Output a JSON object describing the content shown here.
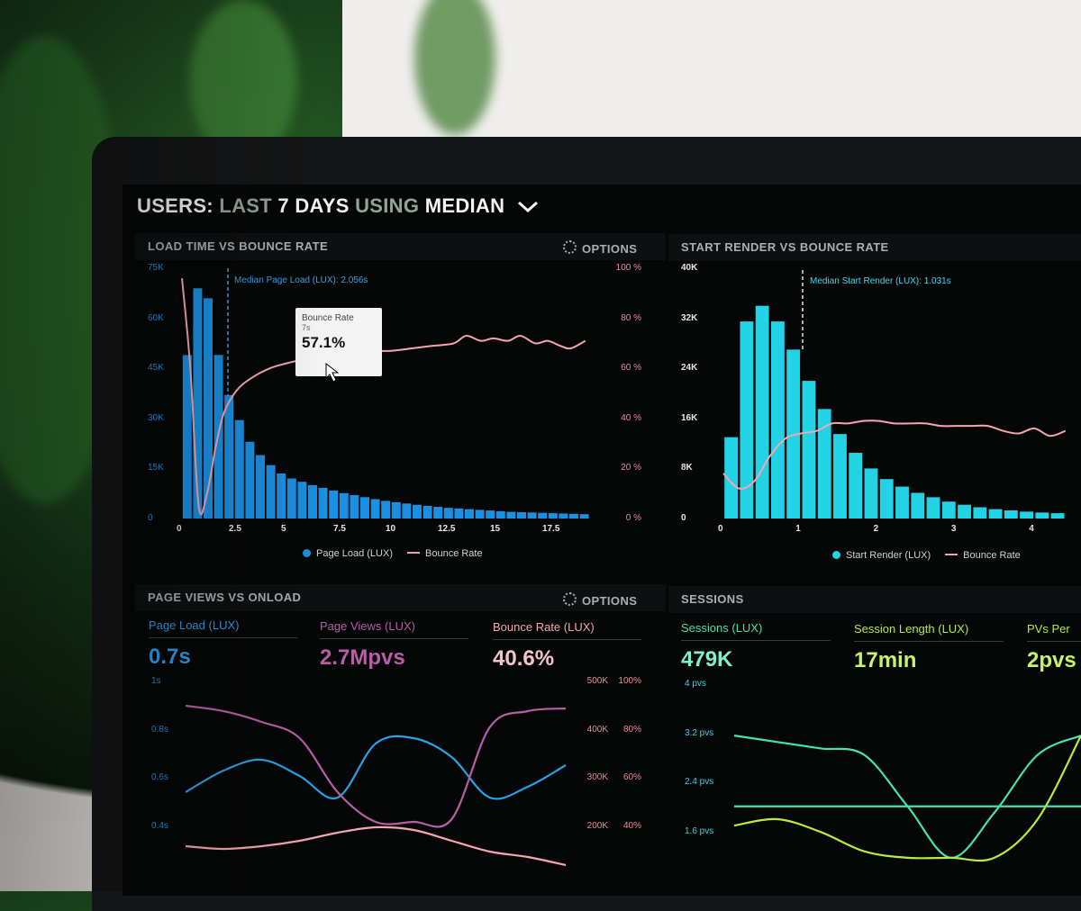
{
  "header": {
    "users": "USERS:",
    "last": "LAST",
    "days": "7 DAYS",
    "using": "USING",
    "median": "MEDIAN"
  },
  "colors": {
    "blue": "#1b8fe0",
    "cyan": "#22d3e6",
    "pink": "#f3a6b1",
    "purple": "#b65fa6",
    "teal": "#47e0b0",
    "lime": "#b9ea3d",
    "bg": "#050606"
  },
  "panels": {
    "load_bounce": {
      "title": "LOAD TIME VS BOUNCE RATE",
      "options": "OPTIONS",
      "median_label": "Median Page Load (LUX): 2.056s",
      "tooltip": {
        "title": "Bounce Rate",
        "sub": "7s",
        "value": "57.1%"
      },
      "legend": {
        "a": "Page Load (LUX)",
        "b": "Bounce Rate"
      }
    },
    "start_render": {
      "title": "START RENDER VS BOUNCE RATE",
      "median_label": "Median Start Render (LUX): 1.031s",
      "legend": {
        "a": "Start Render (LUX)",
        "b": "Bounce Rate"
      }
    },
    "page_views": {
      "title": "PAGE VIEWS VS ONLOAD",
      "options": "OPTIONS",
      "metrics": [
        {
          "label": "Page Load (LUX)",
          "value": "0.7s"
        },
        {
          "label": "Page Views (LUX)",
          "value": "2.7Mpvs"
        },
        {
          "label": "Bounce Rate (LUX)",
          "value": "40.6%"
        }
      ]
    },
    "sessions": {
      "title": "SESSIONS",
      "metrics": [
        {
          "label": "Sessions (LUX)",
          "value": "479K"
        },
        {
          "label": "Session Length (LUX)",
          "value": "17min"
        },
        {
          "label": "PVs Per",
          "value": "2pvs"
        }
      ]
    }
  },
  "chart_data": [
    {
      "type": "bar",
      "title": "LOAD TIME VS BOUNCE RATE",
      "x_ticks": [
        "0",
        "2.5",
        "5",
        "7.5",
        "10",
        "12.5",
        "15",
        "17.5"
      ],
      "y_ticks": [
        "0",
        "15K",
        "30K",
        "45K",
        "60K",
        "75K"
      ],
      "y2_ticks": [
        "0 %",
        "20 %",
        "40 %",
        "60 %",
        "80 %",
        "100 %"
      ],
      "ylim": [
        0,
        75000
      ],
      "y2lim": [
        0,
        100
      ],
      "bar_width": 0.5,
      "series": [
        {
          "name": "Page Load (LUX)",
          "x": [
            0.25,
            0.75,
            1.25,
            1.75,
            2.25,
            2.75,
            3.25,
            3.75,
            4.25,
            4.75,
            5.25,
            5.75,
            6.25,
            6.75,
            7.25,
            7.75,
            8.25,
            8.75,
            9.25,
            9.75,
            10.25,
            10.75,
            11.25,
            11.75,
            12.25,
            12.75,
            13.25,
            13.75,
            14.25,
            14.75,
            15.25,
            15.75,
            16.25,
            16.75,
            17.25,
            17.75,
            18.25,
            18.75,
            19.25
          ],
          "values": [
            49000,
            69000,
            66000,
            49000,
            37000,
            29500,
            23000,
            19000,
            16000,
            13500,
            12000,
            11000,
            10000,
            9200,
            8400,
            7600,
            7000,
            6400,
            5800,
            5300,
            4900,
            4500,
            4100,
            3800,
            3500,
            3200,
            3000,
            2800,
            2600,
            2400,
            2200,
            2000,
            1900,
            1800,
            1700,
            1600,
            1500,
            1400,
            1300
          ]
        },
        {
          "name": "Bounce Rate",
          "axis": "y2",
          "x": [
            0,
            0.4,
            0.8,
            1.2,
            1.6,
            2,
            2.6,
            3.3,
            4.2,
            5,
            6,
            7,
            8,
            9,
            10,
            11,
            12,
            13,
            13.6,
            14.3,
            14.9,
            15.6,
            16.2,
            16.9,
            17.5,
            18.1,
            18.6,
            19.3
          ],
          "values": [
            96,
            60,
            5,
            10,
            28,
            42,
            51,
            56,
            60,
            62,
            64,
            66,
            67,
            67,
            67,
            68,
            69,
            70,
            73,
            71,
            72,
            71,
            73,
            70,
            71,
            69,
            68,
            71
          ]
        }
      ]
    },
    {
      "type": "bar",
      "title": "START RENDER VS BOUNCE RATE",
      "x_ticks": [
        "0",
        "1",
        "2",
        "3",
        "4"
      ],
      "y_ticks": [
        "0",
        "8K",
        "16K",
        "24K",
        "32K",
        "40K"
      ],
      "ylim": [
        0,
        40000
      ],
      "y2lim": [
        0,
        100
      ],
      "bar_width": 0.2,
      "series": [
        {
          "name": "Start Render (LUX)",
          "x": [
            0.1,
            0.3,
            0.5,
            0.7,
            0.9,
            1.1,
            1.3,
            1.5,
            1.7,
            1.9,
            2.1,
            2.3,
            2.5,
            2.7,
            2.9,
            3.1,
            3.3,
            3.5,
            3.7,
            3.9,
            4.1,
            4.3
          ],
          "values": [
            13000,
            31500,
            34000,
            31500,
            27000,
            22000,
            17500,
            13500,
            10500,
            8000,
            6300,
            5100,
            4100,
            3400,
            2700,
            2200,
            1800,
            1500,
            1300,
            1100,
            950,
            850
          ]
        },
        {
          "name": "Bounce Rate",
          "axis": "y2",
          "x": [
            0,
            0.2,
            0.4,
            0.6,
            0.8,
            1,
            1.2,
            1.4,
            1.6,
            1.8,
            2,
            2.2,
            2.4,
            2.6,
            2.8,
            3,
            3.2,
            3.4,
            3.6,
            3.8,
            4,
            4.2,
            4.4
          ],
          "values": [
            18,
            12,
            15,
            25,
            32,
            34,
            35,
            38,
            38,
            39,
            39,
            38,
            38,
            38,
            37,
            37,
            37,
            37,
            35,
            34,
            36,
            33,
            35
          ]
        }
      ]
    },
    {
      "type": "line",
      "title": "PAGE VIEWS VS ONLOAD",
      "y_ticks": [
        "0.4s",
        "0.6s",
        "0.8s",
        "1s"
      ],
      "y2_ticks_a": [
        "200K",
        "300K",
        "400K",
        "500K"
      ],
      "y2_ticks_b": [
        "40%",
        "60%",
        "80%",
        "100%"
      ],
      "ylim": [
        0.4,
        1.0
      ],
      "series": [
        {
          "name": "Page Load (LUX)",
          "x": [
            0,
            1,
            2,
            3,
            4,
            5,
            6,
            7,
            8,
            9,
            10
          ],
          "values": [
            0.6,
            0.68,
            0.72,
            0.66,
            0.58,
            0.78,
            0.8,
            0.73,
            0.58,
            0.62,
            0.7
          ]
        },
        {
          "name": "Page Views (LUX)",
          "x": [
            0,
            1,
            2,
            3,
            4,
            5,
            6,
            7,
            8,
            9,
            10
          ],
          "values": [
            0.92,
            0.9,
            0.86,
            0.8,
            0.6,
            0.49,
            0.49,
            0.5,
            0.84,
            0.9,
            0.91
          ]
        },
        {
          "name": "Bounce Rate (LUX)",
          "x": [
            0,
            1,
            2,
            3,
            4,
            5,
            6,
            7,
            8,
            9,
            10
          ],
          "values": [
            0.4,
            0.39,
            0.4,
            0.42,
            0.45,
            0.47,
            0.46,
            0.42,
            0.38,
            0.36,
            0.33
          ]
        }
      ]
    },
    {
      "type": "line",
      "title": "SESSIONS",
      "y_ticks": [
        "1.6 pvs",
        "2.4 pvs",
        "3.2 pvs",
        "4 pvs"
      ],
      "ylim": [
        1.2,
        4.0
      ],
      "series": [
        {
          "name": "Sessions (LUX)",
          "x": [
            0,
            1,
            2,
            3,
            4,
            5,
            6,
            7,
            8
          ],
          "values": [
            3.2,
            3.1,
            3.0,
            2.9,
            2.1,
            1.3,
            2.0,
            2.9,
            3.2
          ]
        },
        {
          "name": "Session Length (LUX)",
          "x": [
            0,
            1,
            2,
            3,
            4,
            5,
            6,
            7,
            8
          ],
          "values": [
            2.1,
            2.1,
            2.1,
            2.1,
            2.1,
            2.1,
            2.1,
            2.1,
            2.1
          ]
        },
        {
          "name": "PVs Per",
          "x": [
            0,
            1,
            2,
            3,
            4,
            5,
            6,
            7,
            8
          ],
          "values": [
            1.8,
            1.9,
            1.7,
            1.4,
            1.3,
            1.3,
            1.3,
            1.9,
            3.2
          ]
        }
      ]
    }
  ]
}
